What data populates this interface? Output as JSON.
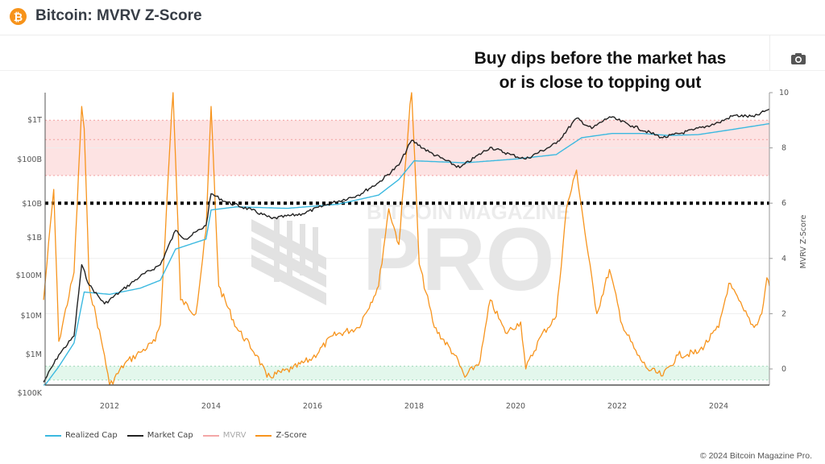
{
  "header": {
    "logo_glyph": "₿",
    "title": "Bitcoin: MVRV Z-Score"
  },
  "toolbar": {
    "camera_icon": "camera-icon"
  },
  "annotation": {
    "line1": "Buy dips before the market has",
    "line2": "or is close to topping out"
  },
  "watermark": {
    "top_text": "BITCOIN MAGAZINE",
    "big_text": "PRO"
  },
  "legend": [
    {
      "label": "Realized Cap",
      "color": "#3bb9e0"
    },
    {
      "label": "Market Cap",
      "color": "#222222"
    },
    {
      "label": "MVRV",
      "color": "#f4a7a7"
    },
    {
      "label": "Z-Score",
      "color": "#f7941d"
    }
  ],
  "footer": {
    "copyright": "© 2024 Bitcoin Magazine Pro."
  },
  "chart_data": {
    "type": "line",
    "title": "Bitcoin: MVRV Z-Score",
    "annotation": "Buy dips before the market has or is close to topping out",
    "x_ticks": [
      "2012",
      "2014",
      "2016",
      "2018",
      "2020",
      "2022",
      "2024"
    ],
    "y_left": {
      "scale": "log",
      "ticks": [
        "$100K",
        "$1M",
        "$10M",
        "$100M",
        "$1B",
        "$10B",
        "$100B",
        "$1T"
      ],
      "range": [
        "$100K",
        "$5T"
      ]
    },
    "y_right": {
      "label": "MVRV Z-Score",
      "ticks": [
        "0",
        "2",
        "4",
        "6",
        "8",
        "10"
      ],
      "range": [
        -0.6,
        10
      ]
    },
    "bands": [
      {
        "name": "overvalued-zone",
        "from": 7,
        "to": 9,
        "color": "#fde3e3"
      },
      {
        "name": "undervalued-zone",
        "from": -0.4,
        "to": 0.1,
        "color": "#e3f7ec"
      }
    ],
    "reference_line": {
      "y": 6,
      "style": "dotted",
      "color": "#000000"
    },
    "series": [
      {
        "name": "Z-Score",
        "color": "#f7941d",
        "points": [
          [
            2010.7,
            2.5
          ],
          [
            2010.9,
            6.5
          ],
          [
            2011.0,
            1.0
          ],
          [
            2011.3,
            3.5
          ],
          [
            2011.45,
            9.5
          ],
          [
            2011.5,
            8.7
          ],
          [
            2011.6,
            3.0
          ],
          [
            2011.9,
            0.5
          ],
          [
            2012.0,
            -0.6
          ],
          [
            2012.3,
            0.2
          ],
          [
            2012.6,
            0.6
          ],
          [
            2012.9,
            1.0
          ],
          [
            2013.0,
            1.6
          ],
          [
            2013.25,
            10.2
          ],
          [
            2013.4,
            2.5
          ],
          [
            2013.7,
            2.0
          ],
          [
            2013.9,
            5.0
          ],
          [
            2014.0,
            9.5
          ],
          [
            2014.15,
            3.0
          ],
          [
            2014.5,
            1.5
          ],
          [
            2014.9,
            0.5
          ],
          [
            2015.1,
            -0.3
          ],
          [
            2015.6,
            0.0
          ],
          [
            2016.0,
            0.4
          ],
          [
            2016.4,
            1.2
          ],
          [
            2016.9,
            1.5
          ],
          [
            2017.3,
            3.0
          ],
          [
            2017.5,
            5.8
          ],
          [
            2017.7,
            4.5
          ],
          [
            2017.95,
            10.2
          ],
          [
            2018.1,
            3.8
          ],
          [
            2018.4,
            1.5
          ],
          [
            2018.8,
            0.5
          ],
          [
            2019.0,
            -0.3
          ],
          [
            2019.3,
            0.3
          ],
          [
            2019.5,
            2.5
          ],
          [
            2019.8,
            1.3
          ],
          [
            2020.1,
            1.7
          ],
          [
            2020.2,
            0.0
          ],
          [
            2020.5,
            1.2
          ],
          [
            2020.8,
            1.9
          ],
          [
            2021.0,
            5.8
          ],
          [
            2021.2,
            7.2
          ],
          [
            2021.4,
            4.5
          ],
          [
            2021.6,
            2.0
          ],
          [
            2021.85,
            3.6
          ],
          [
            2022.1,
            1.6
          ],
          [
            2022.4,
            0.5
          ],
          [
            2022.6,
            0.0
          ],
          [
            2022.9,
            -0.25
          ],
          [
            2023.2,
            0.5
          ],
          [
            2023.6,
            0.6
          ],
          [
            2024.0,
            1.5
          ],
          [
            2024.2,
            3.1
          ],
          [
            2024.5,
            2.1
          ],
          [
            2024.7,
            1.5
          ],
          [
            2024.85,
            2.0
          ],
          [
            2024.95,
            3.3
          ],
          [
            2025.0,
            3.0
          ]
        ]
      },
      {
        "name": "Market Cap",
        "color": "#222222",
        "points": [
          [
            2010.7,
            200000
          ],
          [
            2011.0,
            1000000
          ],
          [
            2011.3,
            3000000
          ],
          [
            2011.45,
            200000000
          ],
          [
            2011.6,
            60000000
          ],
          [
            2011.9,
            20000000
          ],
          [
            2012.2,
            40000000
          ],
          [
            2012.6,
            100000000
          ],
          [
            2013.0,
            200000000
          ],
          [
            2013.3,
            1500000000
          ],
          [
            2013.5,
            900000000
          ],
          [
            2013.9,
            2000000000
          ],
          [
            2014.0,
            13000000000
          ],
          [
            2014.3,
            8000000000
          ],
          [
            2014.8,
            5000000000
          ],
          [
            2015.2,
            3000000000
          ],
          [
            2015.8,
            4000000000
          ],
          [
            2016.3,
            7000000000
          ],
          [
            2016.9,
            12000000000
          ],
          [
            2017.3,
            25000000000
          ],
          [
            2017.7,
            70000000000
          ],
          [
            2017.95,
            300000000000
          ],
          [
            2018.3,
            150000000000
          ],
          [
            2018.9,
            60000000000
          ],
          [
            2019.5,
            200000000000
          ],
          [
            2019.9,
            130000000000
          ],
          [
            2020.2,
            100000000000
          ],
          [
            2020.8,
            250000000000
          ],
          [
            2021.2,
            1100000000000
          ],
          [
            2021.5,
            600000000000
          ],
          [
            2021.85,
            1200000000000
          ],
          [
            2022.3,
            700000000000
          ],
          [
            2022.9,
            350000000000
          ],
          [
            2023.5,
            550000000000
          ],
          [
            2024.0,
            850000000000
          ],
          [
            2024.3,
            1300000000000
          ],
          [
            2024.7,
            1200000000000
          ],
          [
            2025.0,
            1900000000000
          ]
        ]
      },
      {
        "name": "Realized Cap",
        "color": "#3bb9e0",
        "points": [
          [
            2010.7,
            150000
          ],
          [
            2011.0,
            500000
          ],
          [
            2011.3,
            2000000
          ],
          [
            2011.5,
            40000000
          ],
          [
            2012.0,
            35000000
          ],
          [
            2012.6,
            50000000
          ],
          [
            2013.0,
            80000000
          ],
          [
            2013.3,
            500000000
          ],
          [
            2013.9,
            900000000
          ],
          [
            2014.0,
            5000000000
          ],
          [
            2014.5,
            6000000000
          ],
          [
            2015.5,
            5500000000
          ],
          [
            2016.5,
            7000000000
          ],
          [
            2017.3,
            12000000000
          ],
          [
            2017.7,
            30000000000
          ],
          [
            2018.0,
            90000000000
          ],
          [
            2019.0,
            80000000000
          ],
          [
            2020.0,
            100000000000
          ],
          [
            2020.8,
            130000000000
          ],
          [
            2021.3,
            350000000000
          ],
          [
            2021.9,
            450000000000
          ],
          [
            2022.5,
            450000000000
          ],
          [
            2023.0,
            400000000000
          ],
          [
            2023.6,
            420000000000
          ],
          [
            2024.2,
            550000000000
          ],
          [
            2025.0,
            800000000000
          ]
        ]
      }
    ],
    "legend": [
      "Realized Cap",
      "Market Cap",
      "MVRV",
      "Z-Score"
    ],
    "legend_position": "bottom-left",
    "grid": true
  }
}
